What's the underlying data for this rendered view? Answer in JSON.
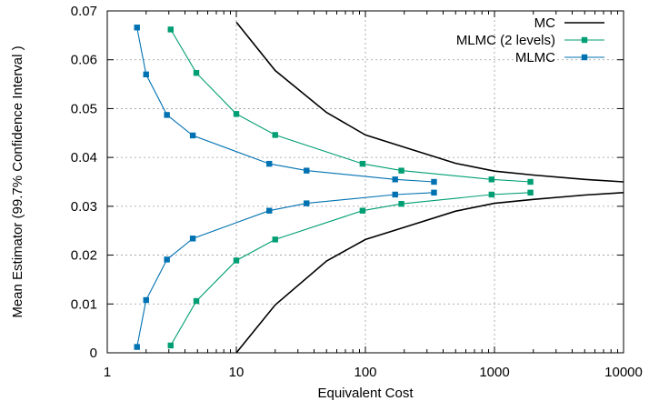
{
  "chart_data": {
    "type": "line",
    "xscale": "log",
    "xlabel": "Equivalent Cost",
    "ylabel": "Mean Estimator (99.7% Confidence Interval )",
    "xlim": [
      1,
      10000
    ],
    "ylim": [
      0,
      0.07
    ],
    "xticks": [
      1,
      10,
      100,
      1000,
      10000
    ],
    "xtick_labels": [
      "1",
      "10",
      "100",
      "1000",
      "10000"
    ],
    "yticks": [
      0,
      0.01,
      0.02,
      0.03,
      0.04,
      0.05,
      0.06,
      0.07
    ],
    "ytick_labels": [
      "0",
      "0.01",
      "0.02",
      "0.03",
      "0.04",
      "0.05",
      "0.06",
      "0.07"
    ],
    "grid": true,
    "legend_position": "top-right",
    "series": [
      {
        "name": "MC",
        "color": "#000000",
        "marker": "none",
        "upper": [
          [
            10,
            0.0677
          ],
          [
            20,
            0.0578
          ],
          [
            50,
            0.0492
          ],
          [
            100,
            0.0446
          ],
          [
            200,
            0.0421
          ],
          [
            500,
            0.0388
          ],
          [
            1000,
            0.0372
          ],
          [
            2000,
            0.0364
          ],
          [
            5000,
            0.0355
          ],
          [
            10000,
            0.035
          ]
        ],
        "lower": [
          [
            10,
            0.0
          ],
          [
            20,
            0.0098
          ],
          [
            50,
            0.0188
          ],
          [
            100,
            0.0232
          ],
          [
            200,
            0.0257
          ],
          [
            500,
            0.029
          ],
          [
            1000,
            0.0306
          ],
          [
            2000,
            0.0314
          ],
          [
            5000,
            0.0323
          ],
          [
            10000,
            0.0328
          ]
        ]
      },
      {
        "name": "MLMC (2 levels)",
        "color": "#009e73",
        "marker": "square",
        "upper": [
          [
            3.1,
            0.0662
          ],
          [
            4.9,
            0.0573
          ],
          [
            10,
            0.0489
          ],
          [
            20,
            0.0446
          ],
          [
            95,
            0.0387
          ],
          [
            190,
            0.0373
          ],
          [
            950,
            0.0355
          ],
          [
            1900,
            0.035
          ]
        ],
        "lower": [
          [
            3.1,
            0.0015
          ],
          [
            4.9,
            0.0106
          ],
          [
            10,
            0.0189
          ],
          [
            20,
            0.0232
          ],
          [
            95,
            0.0291
          ],
          [
            190,
            0.0305
          ],
          [
            950,
            0.0324
          ],
          [
            1900,
            0.0328
          ]
        ]
      },
      {
        "name": "MLMC",
        "color": "#0072b2",
        "marker": "square",
        "upper": [
          [
            1.7,
            0.0666
          ],
          [
            2.0,
            0.057
          ],
          [
            2.9,
            0.0487
          ],
          [
            4.6,
            0.0445
          ],
          [
            18,
            0.0387
          ],
          [
            35,
            0.0373
          ],
          [
            170,
            0.0355
          ],
          [
            340,
            0.035
          ]
        ],
        "lower": [
          [
            1.7,
            0.0012
          ],
          [
            2.0,
            0.0108
          ],
          [
            2.9,
            0.0191
          ],
          [
            4.6,
            0.0234
          ],
          [
            18,
            0.0291
          ],
          [
            35,
            0.0306
          ],
          [
            170,
            0.0324
          ],
          [
            340,
            0.0328
          ]
        ]
      }
    ]
  }
}
